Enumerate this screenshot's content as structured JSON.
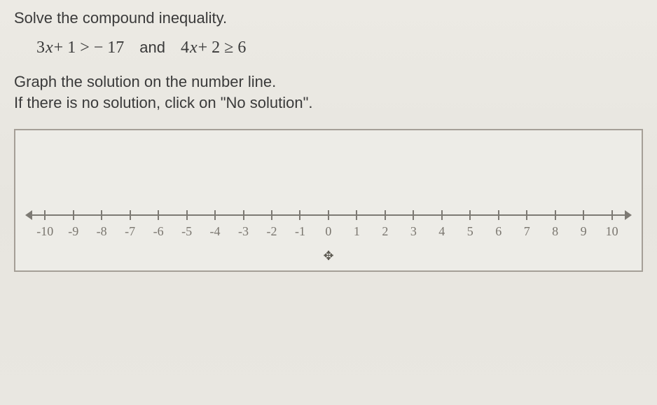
{
  "problem": {
    "prompt": "Solve the compound inequality.",
    "expr1_parts": [
      "3",
      "x",
      " + 1 > − 17"
    ],
    "conj": "and",
    "expr2_parts": [
      "4",
      "x",
      " + 2 ≥ 6"
    ],
    "graph_instruction": "Graph the solution on the number line.",
    "no_solution_instruction": "If there is no solution, click on \"No solution\"."
  },
  "numberline": {
    "min": -10,
    "max": 10,
    "labels": [
      "-10",
      "-9",
      "-8",
      "-7",
      "-6",
      "-5",
      "-4",
      "-3",
      "-2",
      "-1",
      "0",
      "1",
      "2",
      "3",
      "4",
      "5",
      "6",
      "7",
      "8",
      "9",
      "10"
    ],
    "axis_color": "#7d7a74",
    "label_color": "#7a766f",
    "background": "#edece7",
    "border_color": "#a59f97"
  },
  "styling": {
    "page_bg": "#e8e6e0",
    "text_color": "#3a3a3a",
    "body_font": "Verdana, Geneva, sans-serif",
    "math_font": "Times New Roman, serif",
    "prompt_fontsize": 22,
    "math_fontsize": 24,
    "tick_fontsize": 18
  },
  "drag_icon": "✥"
}
